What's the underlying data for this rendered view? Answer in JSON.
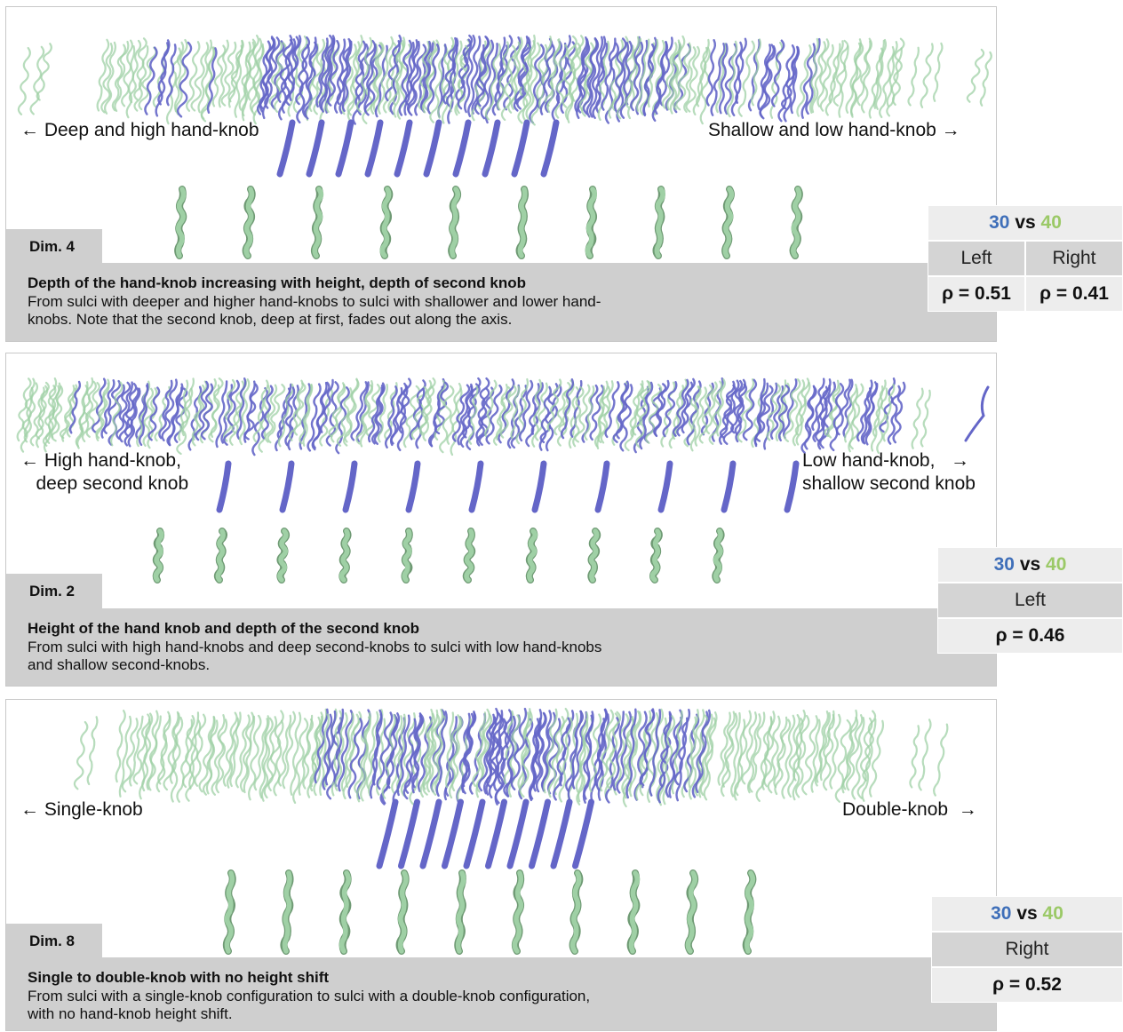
{
  "colors": {
    "blue": "#3f6fb9",
    "green": "#9bc967",
    "sulcus_blue": "#6466c8",
    "sulcus_green": "#9fd0a5"
  },
  "panels": [
    {
      "dim": "Dim. 4",
      "left_label": "← Deep and high hand-knob",
      "right_label": "Shallow and low hand-knob →",
      "title": "Depth of the hand-knob increasing with height, depth of second knob",
      "text": "From sulci with deeper and higher hand-knobs to sulci with shallower and lower hand-knobs. Note that the second knob, deep at first, fades out along the axis.",
      "table": {
        "n1": "30",
        "vs": "vs",
        "n2": "40",
        "hemis": [
          "Left",
          "Right"
        ],
        "rhos": [
          "ρ = 0.51",
          "ρ = 0.41"
        ]
      }
    },
    {
      "dim": "Dim. 2",
      "left_label": "← High hand-knob,\n   deep second knob",
      "right_label": "Low hand-knob,   →\nshallow second knob",
      "title": "Height of the hand knob and depth of the second knob",
      "text": "From sulci with high hand-knobs and deep second-knobs to sulci with low hand-knobs and shallow second-knobs.",
      "table": {
        "n1": "30",
        "vs": "vs",
        "n2": "40",
        "hemis": [
          "Left"
        ],
        "rhos": [
          "ρ = 0.46"
        ]
      }
    },
    {
      "dim": "Dim. 8",
      "left_label": "← Single-knob",
      "right_label": "Double-knob  →",
      "title": "Single to double-knob with no height shift",
      "text": "From sulci with a single-knob configuration to sulci with a double-knob configuration, with no hand-knob height shift.",
      "table": {
        "n1": "30",
        "vs": "vs",
        "n2": "40",
        "hemis": [
          "Right"
        ],
        "rhos": [
          "ρ = 0.52"
        ]
      }
    }
  ]
}
